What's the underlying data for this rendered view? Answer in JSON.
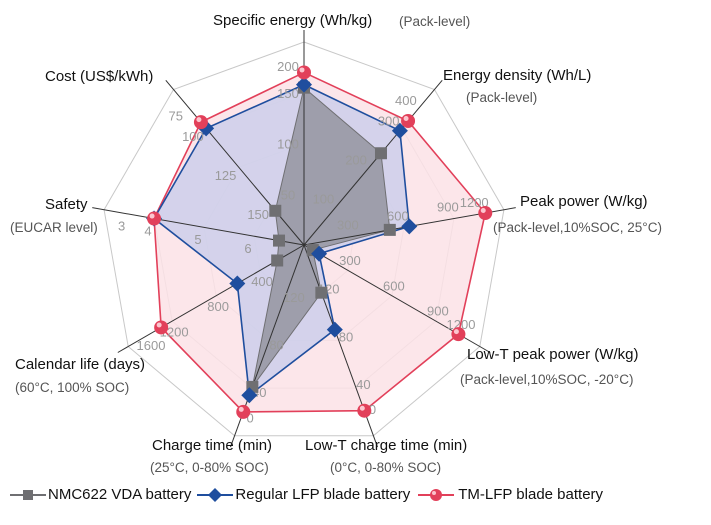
{
  "chart_data": {
    "type": "radar",
    "axes": [
      {
        "title": "Specific energy (Wh/kg)",
        "subtitle": "(Pack-level)",
        "range": [
          0,
          200
        ],
        "ticks": [
          50,
          100,
          150,
          200
        ]
      },
      {
        "title": "Energy density (Wh/L)",
        "subtitle": "(Pack-level)",
        "range": [
          0,
          400
        ],
        "ticks": [
          100,
          200,
          300,
          400
        ]
      },
      {
        "title": "Peak power (W/kg)",
        "subtitle": "(Pack-level,10%SOC, 25°C)",
        "range": [
          0,
          1200
        ],
        "ticks": [
          300,
          600,
          900,
          1200
        ]
      },
      {
        "title": "Low-T peak power (W/kg)",
        "subtitle": "(Pack-level,10%SOC, -20°C)",
        "range": [
          0,
          1200
        ],
        "ticks": [
          300,
          600,
          900,
          1200
        ]
      },
      {
        "title": "Low-T charge time (min)",
        "subtitle": "(0°C, 0-80% SOC)",
        "range": [
          160,
          0
        ],
        "ticks": [
          120,
          80,
          40,
          0
        ]
      },
      {
        "title": "Charge time (min)",
        "subtitle": "(25°C, 0-80% SOC)",
        "range": [
          160,
          0
        ],
        "ticks": [
          120,
          80,
          40,
          0
        ]
      },
      {
        "title": "Calendar life (days)",
        "subtitle": "(60°C, 100% SOC)",
        "range": [
          0,
          1600
        ],
        "ticks": [
          400,
          800,
          1200,
          1600
        ]
      },
      {
        "title": "Safety",
        "subtitle": "(EUCAR level)",
        "range": [
          7,
          3
        ],
        "ticks": [
          6,
          5,
          4,
          3
        ]
      },
      {
        "title": "Cost (US$/kWh)",
        "subtitle": "",
        "range": [
          175,
          75
        ],
        "ticks": [
          150,
          125,
          100,
          75
        ]
      }
    ],
    "series": [
      {
        "name": "TM-LFP blade battery",
        "color": "#e2405a",
        "fill": "#fbe2e6",
        "marker": "sphere",
        "values": [
          170,
          319,
          1088,
          1054,
          21,
          20,
          1300,
          4,
          96
        ]
      },
      {
        "name": "Regular LFP blade battery",
        "color": "#1f4e9e",
        "fill": "#c9cdeb",
        "marker": "diamond",
        "values": [
          158,
          294,
          632,
          103,
          89,
          34,
          607,
          4,
          100
        ]
      },
      {
        "name": "NMC622 VDA battery",
        "color": "#6f6f72",
        "fill": "#8c8c96",
        "marker": "square",
        "values": [
          155,
          236,
          515,
          60,
          120,
          41,
          244,
          6.5,
          153
        ]
      }
    ],
    "grid": true,
    "legend_position": "bottom"
  }
}
